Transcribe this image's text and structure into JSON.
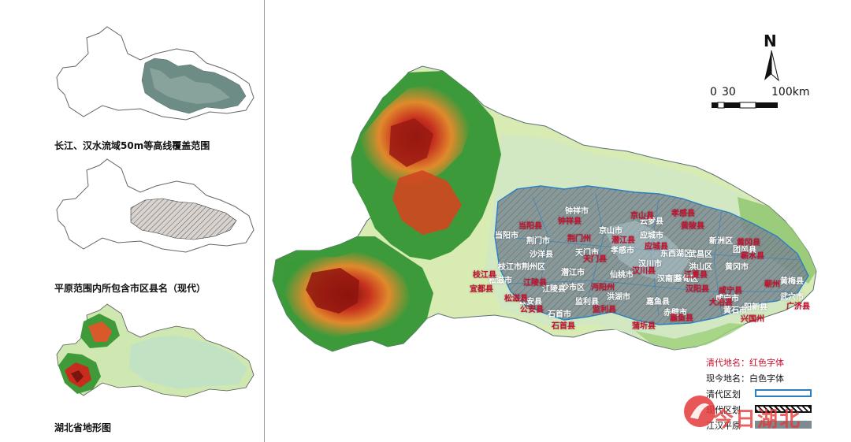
{
  "thumbnails": [
    {
      "caption": "长江、汉水流域50m等高线覆盖范围"
    },
    {
      "caption": "平原范围内所包含市区县名（现代）"
    },
    {
      "caption": "湖北省地形图"
    }
  ],
  "north_arrow": {
    "label": "N"
  },
  "scale_bar": {
    "label_start": "0",
    "label_mid": "30",
    "label_end": "100km"
  },
  "legend": {
    "qing_names": "清代地名：红色字体",
    "modern_names": "现今地名：白色字体",
    "qing_division": "清代区划",
    "modern_division": "现代区划",
    "plain": "江汉平原"
  },
  "place_labels": {
    "modern_white": [
      "钟祥市",
      "京山市",
      "荆门市",
      "沙洋县",
      "潜江市",
      "天门市",
      "应城市",
      "云梦县",
      "孝感市",
      "汉川市",
      "东西湖区",
      "武昌区",
      "洪山区",
      "新洲区",
      "团风县",
      "黄冈市",
      "仙桃市",
      "汉南区",
      "蔡甸区",
      "嘉鱼县",
      "洪湖市",
      "监利县",
      "江陵县",
      "荆州区",
      "沙市区",
      "公安县",
      "石首市",
      "松滋市",
      "枝江市",
      "当阳市",
      "咸宁市",
      "赤壁市",
      "黄石市",
      "阳新县",
      "武穴市",
      "黄梅县"
    ],
    "qing_red": [
      "荆门州",
      "当阳县",
      "钟祥县",
      "京山县",
      "潜江县",
      "天门县",
      "应城县",
      "孝感县",
      "汉川县",
      "汉阳县",
      "江夏县",
      "黄陂县",
      "黄冈县",
      "蕲水县",
      "蕲州",
      "监利县",
      "沔阳州",
      "江陵县",
      "松滋县",
      "枝江县",
      "公安县",
      "石首县",
      "嘉鱼县",
      "蒲圻县",
      "咸宁县",
      "大冶县",
      "兴国州",
      "广济县",
      "宜都县"
    ]
  },
  "watermark": {
    "text": "今日湖北"
  },
  "colors": {
    "qing_red": "#c8102e",
    "qing_outline": "#2b7fc0",
    "plain_gray": "#7d8a90"
  }
}
